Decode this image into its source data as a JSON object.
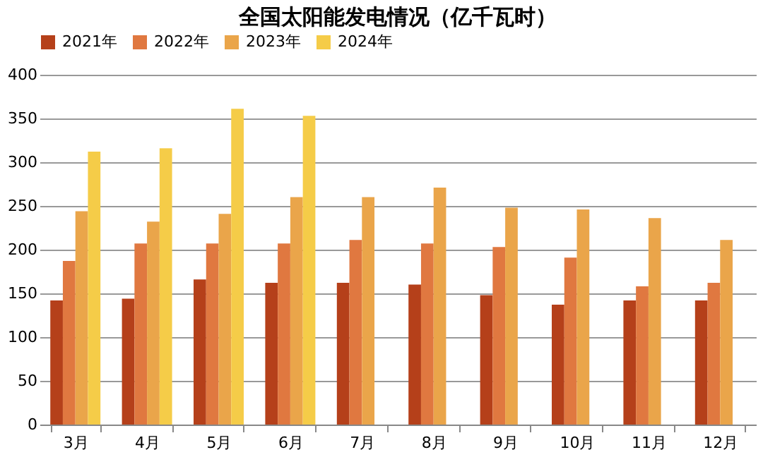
{
  "chart_data": {
    "type": "bar",
    "title": "全国太阳能发电情况（亿千瓦时）",
    "categories": [
      "3月",
      "4月",
      "5月",
      "6月",
      "7月",
      "8月",
      "9月",
      "10月",
      "11月",
      "12月"
    ],
    "series": [
      {
        "name": "2021年",
        "color": "#b5401a",
        "values": [
          142,
          144,
          166,
          162,
          162,
          160,
          148,
          137,
          142,
          142
        ]
      },
      {
        "name": "2022年",
        "color": "#e07840",
        "values": [
          187,
          207,
          207,
          207,
          211,
          207,
          203,
          191,
          158,
          162
        ]
      },
      {
        "name": "2023年",
        "color": "#eaa54a",
        "values": [
          244,
          232,
          241,
          260,
          260,
          271,
          248,
          246,
          236,
          211
        ]
      },
      {
        "name": "2024年",
        "color": "#f5cc48",
        "values": [
          312,
          316,
          361,
          353,
          null,
          null,
          null,
          null,
          null,
          null
        ]
      }
    ],
    "ylim": [
      0,
      400
    ],
    "yticks": [
      0,
      50,
      100,
      150,
      200,
      250,
      300,
      350,
      400
    ],
    "grid": "y",
    "legend": "top"
  }
}
